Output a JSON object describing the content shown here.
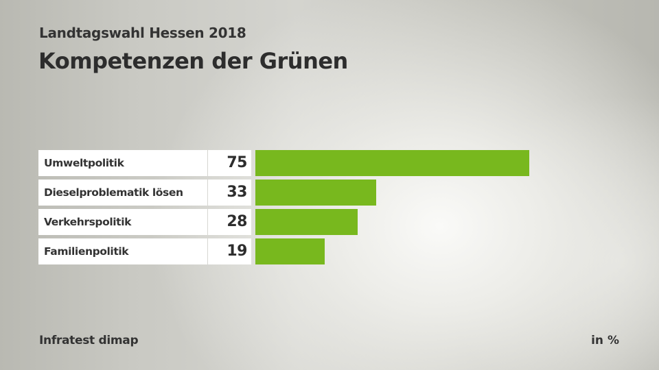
{
  "header": {
    "subtitle": "Landtagswahl Hessen 2018",
    "title": "Kompetenzen der Grünen"
  },
  "footer": {
    "source": "Infratest dimap",
    "unit": "in %"
  },
  "colors": {
    "bar": "#78b81e",
    "text": "#333333"
  },
  "chart_data": {
    "type": "bar",
    "orientation": "horizontal",
    "title": "Kompetenzen der Grünen",
    "subtitle": "Landtagswahl Hessen 2018",
    "categories": [
      "Umweltpolitik",
      "Dieselproblematik lösen",
      "Verkehrspolitik",
      "Familienpolitik"
    ],
    "values": [
      75,
      33,
      28,
      19
    ],
    "value_labels": [
      "75",
      "33",
      "28",
      "19"
    ],
    "xlabel": "",
    "ylabel": "",
    "unit": "in %",
    "source": "Infratest dimap",
    "xlim": [
      0,
      75
    ],
    "grid": false,
    "legend": "none"
  }
}
